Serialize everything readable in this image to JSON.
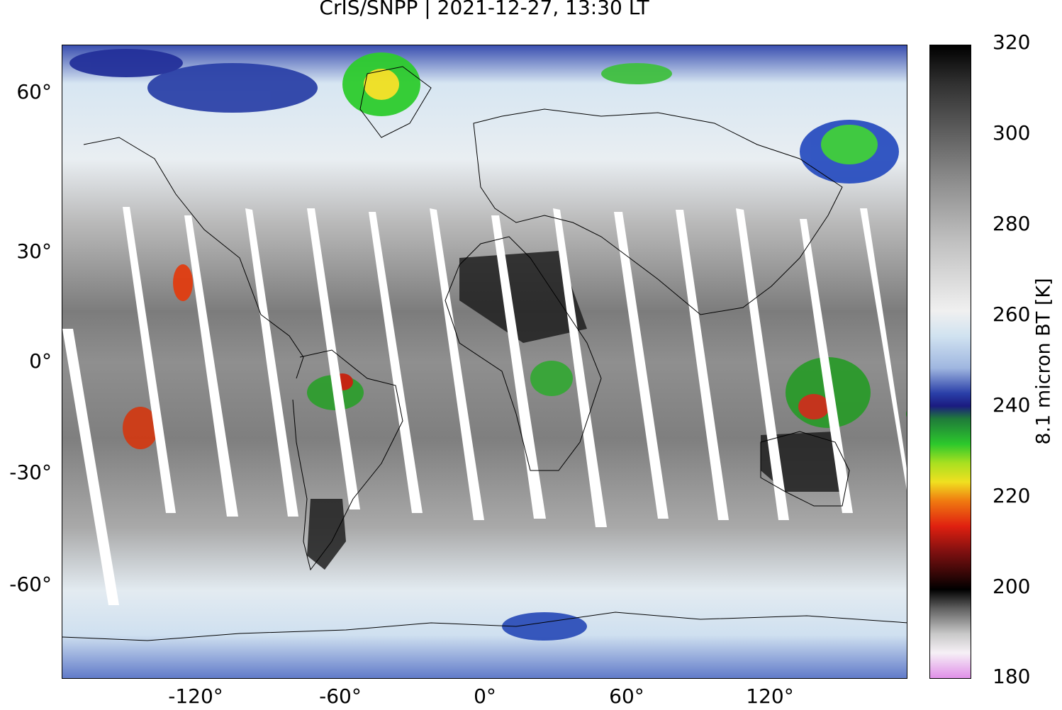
{
  "title": "CrIS/SNPP | 2021-12-27, 13:30 LT",
  "map": {
    "projection": "equirectangular",
    "lon_range": [
      -180,
      180
    ],
    "lat_range": [
      -90,
      90
    ],
    "lat_ticks": [
      "60°",
      "30°",
      "0°",
      "-30°",
      "-60°"
    ],
    "lon_ticks": [
      "-120°",
      "-60°",
      "0°",
      "60°",
      "120°"
    ],
    "swath_gap_color": "#ffffff",
    "coastline_color": "#000000"
  },
  "colorbar": {
    "label": "8.1 micron BT [K]",
    "ticks": [
      "320",
      "300",
      "280",
      "260",
      "240",
      "220",
      "200",
      "180"
    ],
    "range": [
      180,
      320
    ],
    "colormap": "grayscale 260-320 K, rainbow (blue-green-yellow-red) 200-260 K, pink below 200 K"
  }
}
